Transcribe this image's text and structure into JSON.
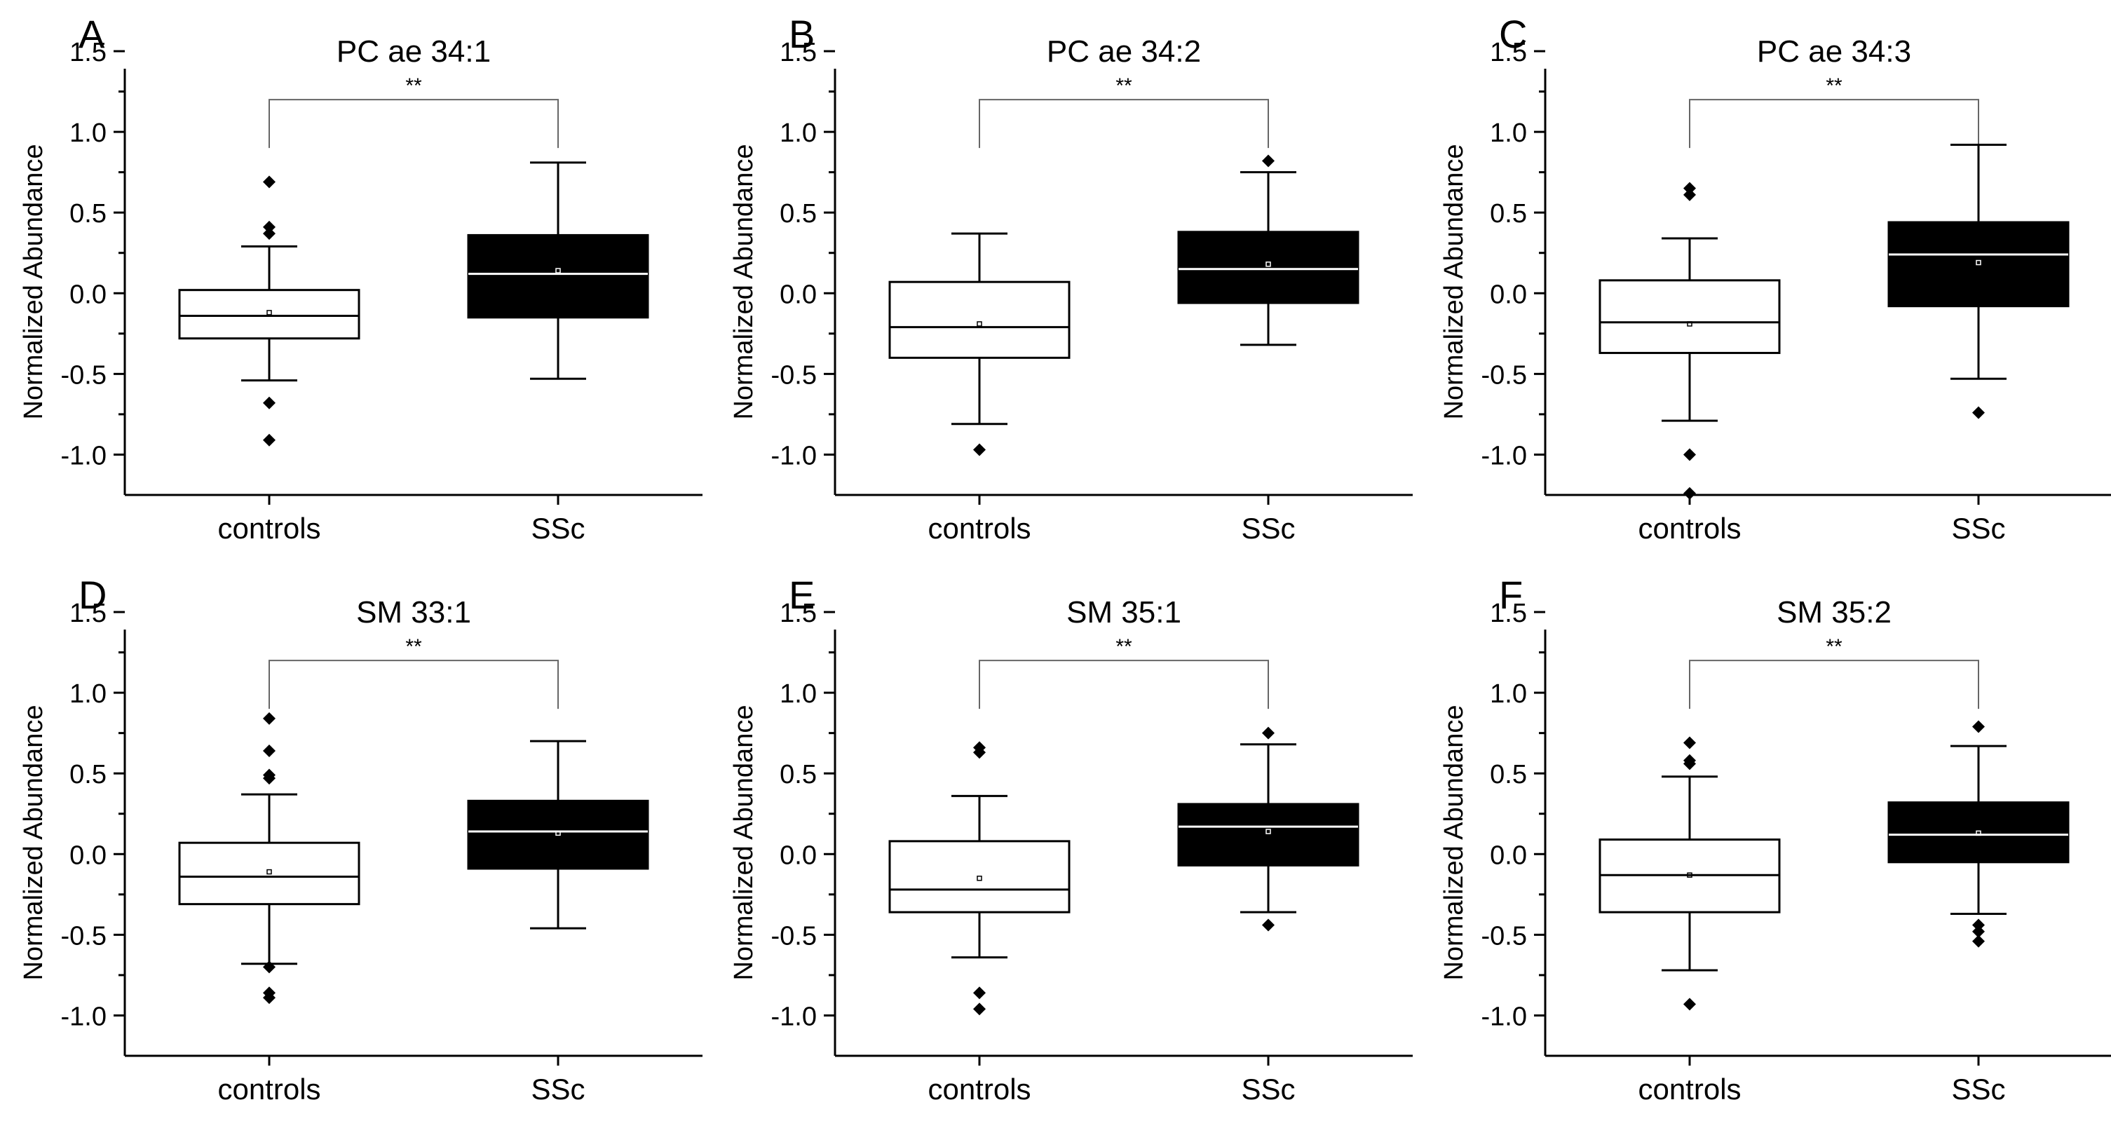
{
  "figure": {
    "ylabel": "Normalized Abundance",
    "categories": [
      "controls",
      "SSc"
    ],
    "series_colors": [
      "#ffffff",
      "#000000"
    ],
    "significance": "**"
  },
  "chart_data": [
    {
      "type": "box",
      "panel": "A",
      "title": "PC ae 34:1",
      "ylabel": "Normalized Abundance",
      "categories": [
        "controls",
        "SSc"
      ],
      "ylim": [
        -1.25,
        1.6
      ],
      "yticks": [
        -1.0,
        -0.5,
        0.0,
        0.5,
        1.0,
        1.5
      ],
      "significance": "**",
      "boxes": [
        {
          "category": "controls",
          "whisker_low": -0.54,
          "q1": -0.28,
          "median": -0.14,
          "q3": 0.02,
          "whisker_high": 0.29,
          "mean": -0.12,
          "outliers": [
            0.69,
            0.41,
            0.37,
            -0.68,
            -0.91
          ]
        },
        {
          "category": "SSc",
          "whisker_low": -0.53,
          "q1": -0.15,
          "median": 0.12,
          "q3": 0.36,
          "whisker_high": 0.81,
          "mean": 0.14,
          "outliers": []
        }
      ]
    },
    {
      "type": "box",
      "panel": "B",
      "title": "PC ae 34:2",
      "ylabel": "Normalized Abundance",
      "categories": [
        "controls",
        "SSc"
      ],
      "ylim": [
        -1.25,
        1.6
      ],
      "yticks": [
        -1.0,
        -0.5,
        0.0,
        0.5,
        1.0,
        1.5
      ],
      "significance": "**",
      "boxes": [
        {
          "category": "controls",
          "whisker_low": -0.81,
          "q1": -0.4,
          "median": -0.21,
          "q3": 0.07,
          "whisker_high": 0.37,
          "mean": -0.19,
          "outliers": [
            -0.97
          ]
        },
        {
          "category": "SSc",
          "whisker_low": -0.32,
          "q1": -0.06,
          "median": 0.15,
          "q3": 0.38,
          "whisker_high": 0.75,
          "mean": 0.18,
          "outliers": [
            0.82
          ]
        }
      ]
    },
    {
      "type": "box",
      "panel": "C",
      "title": "PC ae 34:3",
      "ylabel": "Normalized Abundance",
      "categories": [
        "controls",
        "SSc"
      ],
      "ylim": [
        -1.25,
        1.6
      ],
      "yticks": [
        -1.0,
        -0.5,
        0.0,
        0.5,
        1.0,
        1.5
      ],
      "significance": "**",
      "boxes": [
        {
          "category": "controls",
          "whisker_low": -0.79,
          "q1": -0.37,
          "median": -0.18,
          "q3": 0.08,
          "whisker_high": 0.34,
          "mean": -0.19,
          "outliers": [
            0.65,
            0.61,
            -1.0,
            -1.24
          ]
        },
        {
          "category": "SSc",
          "whisker_low": -0.53,
          "q1": -0.08,
          "median": 0.24,
          "q3": 0.44,
          "whisker_high": 0.92,
          "mean": 0.19,
          "outliers": [
            -0.74
          ]
        }
      ]
    },
    {
      "type": "box",
      "panel": "D",
      "title": "SM 33:1",
      "ylabel": "Normalized Abundance",
      "categories": [
        "controls",
        "SSc"
      ],
      "ylim": [
        -1.25,
        1.6
      ],
      "yticks": [
        -1.0,
        -0.5,
        0.0,
        0.5,
        1.0,
        1.5
      ],
      "significance": "**",
      "boxes": [
        {
          "category": "controls",
          "whisker_low": -0.68,
          "q1": -0.31,
          "median": -0.14,
          "q3": 0.07,
          "whisker_high": 0.37,
          "mean": -0.11,
          "outliers": [
            0.84,
            0.64,
            0.49,
            0.47,
            -0.7,
            -0.86,
            -0.89
          ]
        },
        {
          "category": "SSc",
          "whisker_low": -0.46,
          "q1": -0.09,
          "median": 0.14,
          "q3": 0.33,
          "whisker_high": 0.7,
          "mean": 0.13,
          "outliers": []
        }
      ]
    },
    {
      "type": "box",
      "panel": "E",
      "title": "SM 35:1",
      "ylabel": "Normalized Abundance",
      "categories": [
        "controls",
        "SSc"
      ],
      "ylim": [
        -1.25,
        1.6
      ],
      "yticks": [
        -1.0,
        -0.5,
        0.0,
        0.5,
        1.0,
        1.5
      ],
      "significance": "**",
      "boxes": [
        {
          "category": "controls",
          "whisker_low": -0.64,
          "q1": -0.36,
          "median": -0.22,
          "q3": 0.08,
          "whisker_high": 0.36,
          "mean": -0.15,
          "outliers": [
            0.66,
            0.63,
            -0.86,
            -0.96
          ]
        },
        {
          "category": "SSc",
          "whisker_low": -0.36,
          "q1": -0.07,
          "median": 0.17,
          "q3": 0.31,
          "whisker_high": 0.68,
          "mean": 0.14,
          "outliers": [
            0.75,
            -0.44
          ]
        }
      ]
    },
    {
      "type": "box",
      "panel": "F",
      "title": "SM 35:2",
      "ylabel": "Normalized Abundance",
      "categories": [
        "controls",
        "SSc"
      ],
      "ylim": [
        -1.25,
        1.6
      ],
      "yticks": [
        -1.0,
        -0.5,
        0.0,
        0.5,
        1.0,
        1.5
      ],
      "significance": "**",
      "boxes": [
        {
          "category": "controls",
          "whisker_low": -0.72,
          "q1": -0.36,
          "median": -0.13,
          "q3": 0.09,
          "whisker_high": 0.48,
          "mean": -0.13,
          "outliers": [
            0.69,
            0.58,
            0.56,
            -0.93
          ]
        },
        {
          "category": "SSc",
          "whisker_low": -0.37,
          "q1": -0.05,
          "median": 0.12,
          "q3": 0.32,
          "whisker_high": 0.67,
          "mean": 0.13,
          "outliers": [
            0.79,
            -0.44,
            -0.48,
            -0.54
          ]
        }
      ]
    }
  ]
}
